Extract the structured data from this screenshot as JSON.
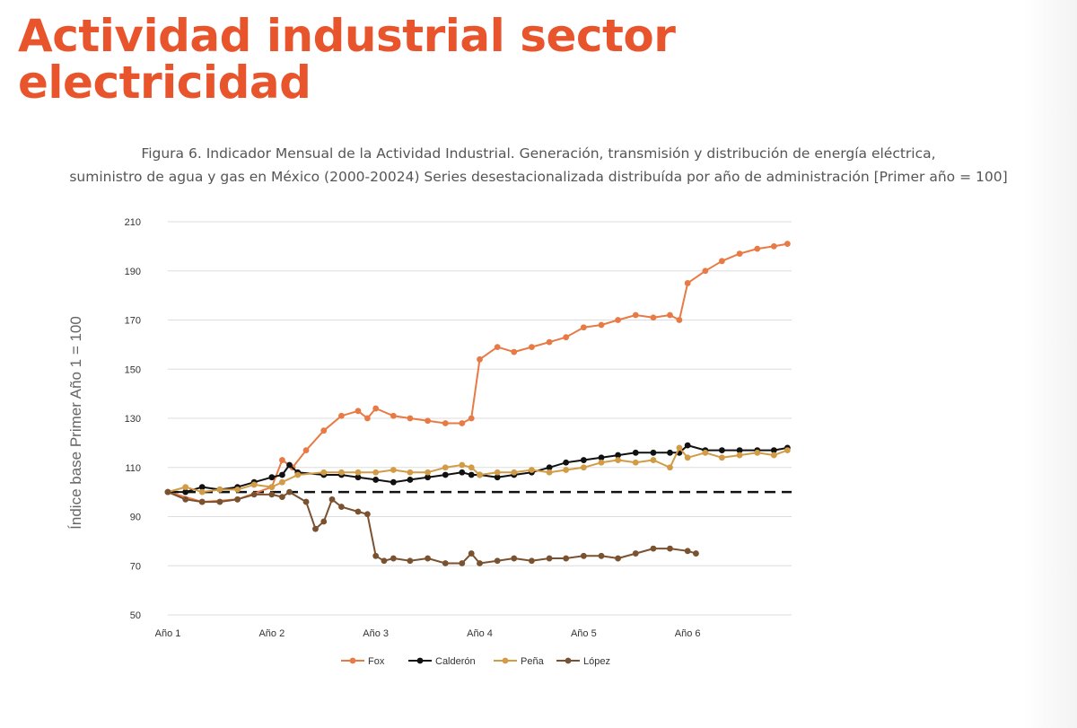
{
  "slide": {
    "title": "Actividad industrial sector electricidad",
    "caption_line1": "Figura 6. Indicador Mensual de la Actividad Industrial. Generación, transmisión y distribución de energía eléctrica,",
    "caption_line2": "suministro de agua y gas en México (2000-20024) Series desestacionalizada distribuída por año de administración [Primer año = 100]"
  },
  "chart_data": {
    "type": "line",
    "ylabel": "Índice base Primer Año 1 = 100",
    "xlabel": "",
    "xlim": [
      1,
      7
    ],
    "ylim": [
      50,
      210
    ],
    "yticks": [
      50,
      70,
      90,
      110,
      130,
      150,
      170,
      190,
      210
    ],
    "xticks": [
      {
        "value": 1,
        "label": "Año 1"
      },
      {
        "value": 2,
        "label": "Año 2"
      },
      {
        "value": 3,
        "label": "Año 3"
      },
      {
        "value": 4,
        "label": "Año 4"
      },
      {
        "value": 5,
        "label": "Año 5"
      },
      {
        "value": 6,
        "label": "Año 6"
      }
    ],
    "grid": "horizontal",
    "legend_position": "bottom",
    "reference_line": {
      "y": 100,
      "style": "dashed",
      "color": "#111111"
    },
    "series": [
      {
        "name": "Fox",
        "color": "#e87a45",
        "points": [
          [
            1,
            100
          ],
          [
            1.33,
            96
          ],
          [
            1.67,
            97
          ],
          [
            2,
            102
          ],
          [
            2.1,
            113
          ],
          [
            2.2,
            110
          ],
          [
            2.33,
            117
          ],
          [
            2.5,
            125
          ],
          [
            2.67,
            131
          ],
          [
            2.83,
            133
          ],
          [
            2.92,
            130
          ],
          [
            3,
            134
          ],
          [
            3.17,
            131
          ],
          [
            3.33,
            130
          ],
          [
            3.5,
            129
          ],
          [
            3.67,
            128
          ],
          [
            3.83,
            128
          ],
          [
            3.92,
            130
          ],
          [
            4,
            154
          ],
          [
            4.17,
            159
          ],
          [
            4.33,
            157
          ],
          [
            4.5,
            159
          ],
          [
            4.67,
            161
          ],
          [
            4.83,
            163
          ],
          [
            5,
            167
          ],
          [
            5.17,
            168
          ],
          [
            5.33,
            170
          ],
          [
            5.5,
            172
          ],
          [
            5.67,
            171
          ],
          [
            5.83,
            172
          ],
          [
            5.92,
            170
          ],
          [
            6,
            185
          ],
          [
            6.17,
            190
          ],
          [
            6.33,
            194
          ],
          [
            6.5,
            197
          ],
          [
            6.67,
            199
          ],
          [
            6.83,
            200
          ],
          [
            6.96,
            201
          ]
        ]
      },
      {
        "name": "Calderón",
        "color": "#111111",
        "points": [
          [
            1,
            100
          ],
          [
            1.17,
            100
          ],
          [
            1.33,
            102
          ],
          [
            1.5,
            101
          ],
          [
            1.67,
            102
          ],
          [
            1.83,
            104
          ],
          [
            2,
            106
          ],
          [
            2.1,
            107
          ],
          [
            2.17,
            111
          ],
          [
            2.25,
            108
          ],
          [
            2.5,
            107
          ],
          [
            2.67,
            107
          ],
          [
            2.83,
            106
          ],
          [
            3,
            105
          ],
          [
            3.17,
            104
          ],
          [
            3.33,
            105
          ],
          [
            3.5,
            106
          ],
          [
            3.67,
            107
          ],
          [
            3.83,
            108
          ],
          [
            3.92,
            107
          ],
          [
            4,
            107
          ],
          [
            4.17,
            106
          ],
          [
            4.33,
            107
          ],
          [
            4.5,
            108
          ],
          [
            4.67,
            110
          ],
          [
            4.83,
            112
          ],
          [
            5,
            113
          ],
          [
            5.17,
            114
          ],
          [
            5.33,
            115
          ],
          [
            5.5,
            116
          ],
          [
            5.67,
            116
          ],
          [
            5.83,
            116
          ],
          [
            5.92,
            116
          ],
          [
            6,
            119
          ],
          [
            6.17,
            117
          ],
          [
            6.33,
            117
          ],
          [
            6.5,
            117
          ],
          [
            6.67,
            117
          ],
          [
            6.83,
            117
          ],
          [
            6.96,
            118
          ]
        ]
      },
      {
        "name": "Peña",
        "color": "#d29b45",
        "points": [
          [
            1,
            100
          ],
          [
            1.17,
            102
          ],
          [
            1.33,
            100
          ],
          [
            1.5,
            101
          ],
          [
            1.67,
            101
          ],
          [
            1.83,
            103
          ],
          [
            2,
            102
          ],
          [
            2.1,
            104
          ],
          [
            2.25,
            107
          ],
          [
            2.5,
            108
          ],
          [
            2.67,
            108
          ],
          [
            2.83,
            108
          ],
          [
            3,
            108
          ],
          [
            3.17,
            109
          ],
          [
            3.33,
            108
          ],
          [
            3.5,
            108
          ],
          [
            3.67,
            110
          ],
          [
            3.83,
            111
          ],
          [
            3.92,
            110
          ],
          [
            4,
            107
          ],
          [
            4.17,
            108
          ],
          [
            4.33,
            108
          ],
          [
            4.5,
            109
          ],
          [
            4.67,
            108
          ],
          [
            4.83,
            109
          ],
          [
            5,
            110
          ],
          [
            5.17,
            112
          ],
          [
            5.33,
            113
          ],
          [
            5.5,
            112
          ],
          [
            5.67,
            113
          ],
          [
            5.83,
            110
          ],
          [
            5.92,
            118
          ],
          [
            6,
            114
          ],
          [
            6.17,
            116
          ],
          [
            6.33,
            114
          ],
          [
            6.5,
            115
          ],
          [
            6.67,
            116
          ],
          [
            6.83,
            115
          ],
          [
            6.96,
            117
          ]
        ]
      },
      {
        "name": "López",
        "color": "#7a5230",
        "points": [
          [
            1,
            100
          ],
          [
            1.17,
            97
          ],
          [
            1.33,
            96
          ],
          [
            1.5,
            96
          ],
          [
            1.67,
            97
          ],
          [
            1.83,
            99
          ],
          [
            2,
            99
          ],
          [
            2.1,
            98
          ],
          [
            2.17,
            100
          ],
          [
            2.33,
            96
          ],
          [
            2.42,
            85
          ],
          [
            2.5,
            88
          ],
          [
            2.58,
            97
          ],
          [
            2.67,
            94
          ],
          [
            2.83,
            92
          ],
          [
            2.92,
            91
          ],
          [
            3,
            74
          ],
          [
            3.08,
            72
          ],
          [
            3.17,
            73
          ],
          [
            3.33,
            72
          ],
          [
            3.5,
            73
          ],
          [
            3.67,
            71
          ],
          [
            3.83,
            71
          ],
          [
            3.92,
            75
          ],
          [
            4,
            71
          ],
          [
            4.17,
            72
          ],
          [
            4.33,
            73
          ],
          [
            4.5,
            72
          ],
          [
            4.67,
            73
          ],
          [
            4.83,
            73
          ],
          [
            5,
            74
          ],
          [
            5.17,
            74
          ],
          [
            5.33,
            73
          ],
          [
            5.5,
            75
          ],
          [
            5.67,
            77
          ],
          [
            5.83,
            77
          ],
          [
            6,
            76
          ],
          [
            6.08,
            75
          ]
        ]
      }
    ]
  }
}
